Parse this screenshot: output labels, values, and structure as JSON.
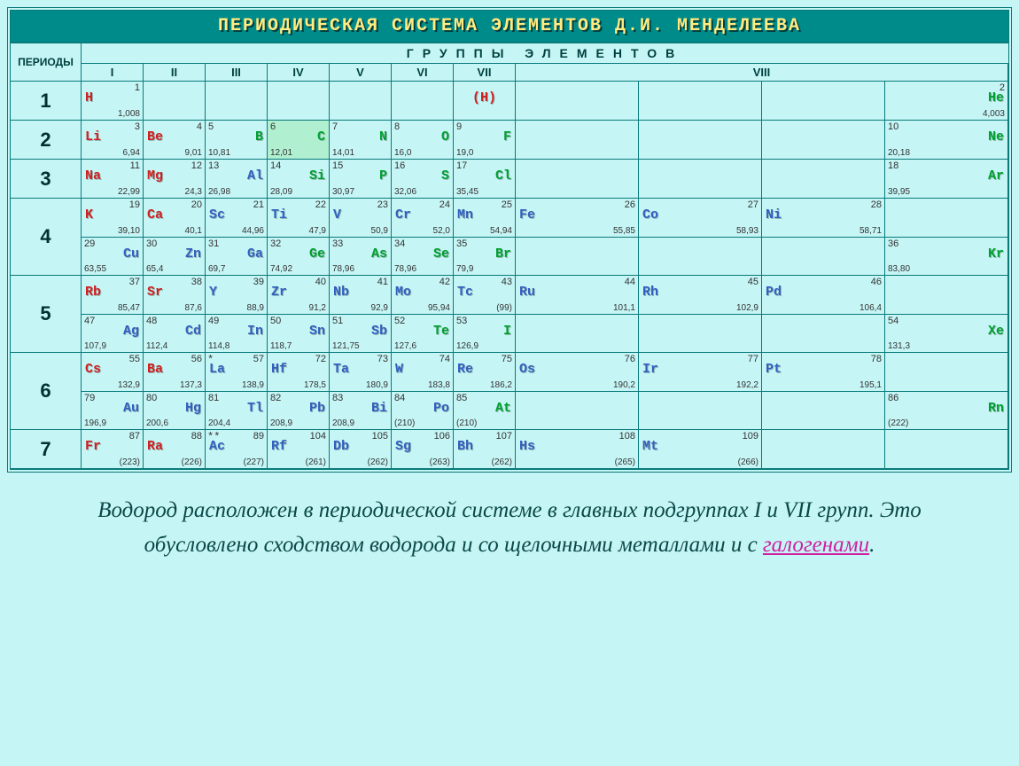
{
  "title": "ПЕРИОДИЧЕСКАЯ СИСТЕМА ЭЛЕМЕНТОВ Д.И. МЕНДЕЛЕЕВА",
  "periods_label": "ПЕРИОДЫ",
  "groups_caption": "ГРУППЫ   ЭЛЕМЕНТОВ",
  "group_labels": [
    "I",
    "II",
    "III",
    "IV",
    "V",
    "VI",
    "VII",
    "VIII"
  ],
  "caption_parts": {
    "p1": "Водород расположен в периодической системе в главных подгруппах   I   и VII групп. Это обусловлено  сходством  водорода и со   щелочными  металлами  и с ",
    "link": "галогенами",
    "p2": "."
  },
  "colors": {
    "background": "#c6f5f5",
    "title_bg": "#008b8b",
    "title_fg": "#ffeb80",
    "border": "#0a7a7a",
    "highlight": "#b0f0d0",
    "red": "#d02020",
    "green": "#00a030",
    "blue": "#3060c0",
    "link": "#d020a0",
    "text": "#0a4848"
  },
  "periods": [
    {
      "num": "1",
      "rows": [
        [
          {
            "sym": "H",
            "num": "1",
            "mass": "1,008",
            "color": "red",
            "pos": "tl"
          },
          null,
          null,
          null,
          null,
          null,
          {
            "sym": "(H)",
            "num": "",
            "mass": "",
            "color": "red",
            "pos": "c"
          },
          {
            "g8": [
              null,
              null,
              null,
              {
                "sym": "He",
                "num": "2",
                "mass": "4,003",
                "color": "green",
                "pos": "tr"
              }
            ]
          }
        ]
      ]
    },
    {
      "num": "2",
      "rows": [
        [
          {
            "sym": "Li",
            "num": "3",
            "mass": "6,94",
            "color": "red",
            "pos": "tl"
          },
          {
            "sym": "Be",
            "num": "4",
            "mass": "9,01",
            "color": "red",
            "pos": "tl"
          },
          {
            "sym": "B",
            "num": "5",
            "mass": "10,81",
            "color": "green",
            "pos": "tr",
            "anumLeft": true,
            "massLeft": true
          },
          {
            "sym": "C",
            "num": "6",
            "mass": "12,01",
            "color": "green",
            "pos": "tr",
            "anumLeft": true,
            "massLeft": true,
            "hl": true
          },
          {
            "sym": "N",
            "num": "7",
            "mass": "14,01",
            "color": "green",
            "pos": "tr",
            "anumLeft": true,
            "massLeft": true
          },
          {
            "sym": "O",
            "num": "8",
            "mass": "16,0",
            "color": "green",
            "pos": "tr",
            "anumLeft": true,
            "massLeft": true
          },
          {
            "sym": "F",
            "num": "9",
            "mass": "19,0",
            "color": "green",
            "pos": "tr",
            "anumLeft": true,
            "massLeft": true
          },
          {
            "g8": [
              null,
              null,
              null,
              {
                "sym": "Ne",
                "num": "10",
                "mass": "20,18",
                "color": "green",
                "pos": "tr",
                "anumLeft": true,
                "massLeft": true
              }
            ]
          }
        ]
      ]
    },
    {
      "num": "3",
      "rows": [
        [
          {
            "sym": "Na",
            "num": "11",
            "mass": "22,99",
            "color": "red",
            "pos": "tl"
          },
          {
            "sym": "Mg",
            "num": "12",
            "mass": "24,3",
            "color": "red",
            "pos": "tl"
          },
          {
            "sym": "Al",
            "num": "13",
            "mass": "26,98",
            "color": "blue",
            "pos": "tr",
            "anumLeft": true,
            "massLeft": true
          },
          {
            "sym": "Si",
            "num": "14",
            "mass": "28,09",
            "color": "green",
            "pos": "tr",
            "anumLeft": true,
            "massLeft": true
          },
          {
            "sym": "P",
            "num": "15",
            "mass": "30,97",
            "color": "green",
            "pos": "tr",
            "anumLeft": true,
            "massLeft": true
          },
          {
            "sym": "S",
            "num": "16",
            "mass": "32,06",
            "color": "green",
            "pos": "tr",
            "anumLeft": true,
            "massLeft": true
          },
          {
            "sym": "Cl",
            "num": "17",
            "mass": "35,45",
            "color": "green",
            "pos": "tr",
            "anumLeft": true,
            "massLeft": true
          },
          {
            "g8": [
              null,
              null,
              null,
              {
                "sym": "Ar",
                "num": "18",
                "mass": "39,95",
                "color": "green",
                "pos": "tr",
                "anumLeft": true,
                "massLeft": true
              }
            ]
          }
        ]
      ]
    },
    {
      "num": "4",
      "rows": [
        [
          {
            "sym": "K",
            "num": "19",
            "mass": "39,10",
            "color": "red",
            "pos": "tl"
          },
          {
            "sym": "Ca",
            "num": "20",
            "mass": "40,1",
            "color": "red",
            "pos": "tl"
          },
          {
            "sym": "Sc",
            "num": "21",
            "mass": "44,96",
            "color": "blue",
            "pos": "tl"
          },
          {
            "sym": "Ti",
            "num": "22",
            "mass": "47,9",
            "color": "blue",
            "pos": "tl"
          },
          {
            "sym": "V",
            "num": "23",
            "mass": "50,9",
            "color": "blue",
            "pos": "tl"
          },
          {
            "sym": "Cr",
            "num": "24",
            "mass": "52,0",
            "color": "blue",
            "pos": "tl"
          },
          {
            "sym": "Mn",
            "num": "25",
            "mass": "54,94",
            "color": "blue",
            "pos": "tl"
          },
          {
            "g8": [
              {
                "sym": "Fe",
                "num": "26",
                "mass": "55,85",
                "color": "blue",
                "pos": "tl"
              },
              {
                "sym": "Co",
                "num": "27",
                "mass": "58,93",
                "color": "blue",
                "pos": "tl"
              },
              {
                "sym": "Ni",
                "num": "28",
                "mass": "58,71",
                "color": "blue",
                "pos": "tl"
              },
              null
            ]
          }
        ],
        [
          {
            "sym": "Cu",
            "num": "29",
            "mass": "63,55",
            "color": "blue",
            "pos": "tr",
            "anumLeft": true,
            "massLeft": true
          },
          {
            "sym": "Zn",
            "num": "30",
            "mass": "65,4",
            "color": "blue",
            "pos": "tr",
            "anumLeft": true,
            "massLeft": true
          },
          {
            "sym": "Ga",
            "num": "31",
            "mass": "69,7",
            "color": "blue",
            "pos": "tr",
            "anumLeft": true,
            "massLeft": true
          },
          {
            "sym": "Ge",
            "num": "32",
            "mass": "74,92",
            "color": "green",
            "pos": "tr",
            "anumLeft": true,
            "massLeft": true
          },
          {
            "sym": "As",
            "num": "33",
            "mass": "78,96",
            "color": "green",
            "pos": "tr",
            "anumLeft": true,
            "massLeft": true
          },
          {
            "sym": "Se",
            "num": "34",
            "mass": "78,96",
            "color": "green",
            "pos": "tr",
            "anumLeft": true,
            "massLeft": true
          },
          {
            "sym": "Br",
            "num": "35",
            "mass": "79,9",
            "color": "green",
            "pos": "tr",
            "anumLeft": true,
            "massLeft": true
          },
          {
            "g8": [
              null,
              null,
              null,
              {
                "sym": "Kr",
                "num": "36",
                "mass": "83,80",
                "color": "green",
                "pos": "tr",
                "anumLeft": true,
                "massLeft": true
              }
            ]
          }
        ]
      ]
    },
    {
      "num": "5",
      "rows": [
        [
          {
            "sym": "Rb",
            "num": "37",
            "mass": "85,47",
            "color": "red",
            "pos": "tl"
          },
          {
            "sym": "Sr",
            "num": "38",
            "mass": "87,6",
            "color": "red",
            "pos": "tl"
          },
          {
            "sym": "Y",
            "num": "39",
            "mass": "88,9",
            "color": "blue",
            "pos": "tl"
          },
          {
            "sym": "Zr",
            "num": "40",
            "mass": "91,2",
            "color": "blue",
            "pos": "tl"
          },
          {
            "sym": "Nb",
            "num": "41",
            "mass": "92,9",
            "color": "blue",
            "pos": "tl"
          },
          {
            "sym": "Mo",
            "num": "42",
            "mass": "95,94",
            "color": "blue",
            "pos": "tl"
          },
          {
            "sym": "Tc",
            "num": "43",
            "mass": "(99)",
            "color": "blue",
            "pos": "tl"
          },
          {
            "g8": [
              {
                "sym": "Ru",
                "num": "44",
                "mass": "101,1",
                "color": "blue",
                "pos": "tl"
              },
              {
                "sym": "Rh",
                "num": "45",
                "mass": "102,9",
                "color": "blue",
                "pos": "tl"
              },
              {
                "sym": "Pd",
                "num": "46",
                "mass": "106,4",
                "color": "blue",
                "pos": "tl"
              },
              null
            ]
          }
        ],
        [
          {
            "sym": "Ag",
            "num": "47",
            "mass": "107,9",
            "color": "blue",
            "pos": "tr",
            "anumLeft": true,
            "massLeft": true
          },
          {
            "sym": "Cd",
            "num": "48",
            "mass": "112,4",
            "color": "blue",
            "pos": "tr",
            "anumLeft": true,
            "massLeft": true
          },
          {
            "sym": "In",
            "num": "49",
            "mass": "114,8",
            "color": "blue",
            "pos": "tr",
            "anumLeft": true,
            "massLeft": true
          },
          {
            "sym": "Sn",
            "num": "50",
            "mass": "118,7",
            "color": "blue",
            "pos": "tr",
            "anumLeft": true,
            "massLeft": true
          },
          {
            "sym": "Sb",
            "num": "51",
            "mass": "121,75",
            "color": "blue",
            "pos": "tr",
            "anumLeft": true,
            "massLeft": true
          },
          {
            "sym": "Te",
            "num": "52",
            "mass": "127,6",
            "color": "green",
            "pos": "tr",
            "anumLeft": true,
            "massLeft": true
          },
          {
            "sym": "I",
            "num": "53",
            "mass": "126,9",
            "color": "green",
            "pos": "tr",
            "anumLeft": true,
            "massLeft": true
          },
          {
            "g8": [
              null,
              null,
              null,
              {
                "sym": "Xe",
                "num": "54",
                "mass": "131,3",
                "color": "green",
                "pos": "tr",
                "anumLeft": true,
                "massLeft": true
              }
            ]
          }
        ]
      ]
    },
    {
      "num": "6",
      "rows": [
        [
          {
            "sym": "Cs",
            "num": "55",
            "mass": "132,9",
            "color": "red",
            "pos": "tl"
          },
          {
            "sym": "Ba",
            "num": "56",
            "mass": "137,3",
            "color": "red",
            "pos": "tl"
          },
          {
            "sym": "La",
            "num": "57",
            "mass": "138,9",
            "color": "blue",
            "pos": "tl",
            "ast": "*"
          },
          {
            "sym": "Hf",
            "num": "72",
            "mass": "178,5",
            "color": "blue",
            "pos": "tl"
          },
          {
            "sym": "Ta",
            "num": "73",
            "mass": "180,9",
            "color": "blue",
            "pos": "tl"
          },
          {
            "sym": "W",
            "num": "74",
            "mass": "183,8",
            "color": "blue",
            "pos": "tl"
          },
          {
            "sym": "Re",
            "num": "75",
            "mass": "186,2",
            "color": "blue",
            "pos": "tl"
          },
          {
            "g8": [
              {
                "sym": "Os",
                "num": "76",
                "mass": "190,2",
                "color": "blue",
                "pos": "tl"
              },
              {
                "sym": "Ir",
                "num": "77",
                "mass": "192,2",
                "color": "blue",
                "pos": "tl"
              },
              {
                "sym": "Pt",
                "num": "78",
                "mass": "195,1",
                "color": "blue",
                "pos": "tl"
              },
              null
            ]
          }
        ],
        [
          {
            "sym": "Au",
            "num": "79",
            "mass": "196,9",
            "color": "blue",
            "pos": "tr",
            "anumLeft": true,
            "massLeft": true
          },
          {
            "sym": "Hg",
            "num": "80",
            "mass": "200,6",
            "color": "blue",
            "pos": "tr",
            "anumLeft": true,
            "massLeft": true
          },
          {
            "sym": "Tl",
            "num": "81",
            "mass": "204,4",
            "color": "blue",
            "pos": "tr",
            "anumLeft": true,
            "massLeft": true
          },
          {
            "sym": "Pb",
            "num": "82",
            "mass": "208,9",
            "color": "blue",
            "pos": "tr",
            "anumLeft": true,
            "massLeft": true
          },
          {
            "sym": "Bi",
            "num": "83",
            "mass": "208,9",
            "color": "blue",
            "pos": "tr",
            "anumLeft": true,
            "massLeft": true
          },
          {
            "sym": "Po",
            "num": "84",
            "mass": "(210)",
            "color": "blue",
            "pos": "tr",
            "anumLeft": true,
            "massLeft": true
          },
          {
            "sym": "At",
            "num": "85",
            "mass": "(210)",
            "color": "green",
            "pos": "tr",
            "anumLeft": true,
            "massLeft": true
          },
          {
            "g8": [
              null,
              null,
              null,
              {
                "sym": "Rn",
                "num": "86",
                "mass": "(222)",
                "color": "green",
                "pos": "tr",
                "anumLeft": true,
                "massLeft": true
              }
            ]
          }
        ]
      ]
    },
    {
      "num": "7",
      "rows": [
        [
          {
            "sym": "Fr",
            "num": "87",
            "mass": "(223)",
            "color": "red",
            "pos": "tl"
          },
          {
            "sym": "Ra",
            "num": "88",
            "mass": "(226)",
            "color": "red",
            "pos": "tl"
          },
          {
            "sym": "Ac",
            "num": "89",
            "mass": "(227)",
            "color": "blue",
            "pos": "tl",
            "ast": "**"
          },
          {
            "sym": "Rf",
            "num": "104",
            "mass": "(261)",
            "color": "blue",
            "pos": "tl"
          },
          {
            "sym": "Db",
            "num": "105",
            "mass": "(262)",
            "color": "blue",
            "pos": "tl"
          },
          {
            "sym": "Sg",
            "num": "106",
            "mass": "(263)",
            "color": "blue",
            "pos": "tl"
          },
          {
            "sym": "Bh",
            "num": "107",
            "mass": "(262)",
            "color": "blue",
            "pos": "tl"
          },
          {
            "g8": [
              {
                "sym": "Hs",
                "num": "108",
                "mass": "(265)",
                "color": "blue",
                "pos": "tl"
              },
              {
                "sym": "Mt",
                "num": "109",
                "mass": "(266)",
                "color": "blue",
                "pos": "tl"
              },
              null,
              null
            ]
          }
        ]
      ]
    }
  ]
}
